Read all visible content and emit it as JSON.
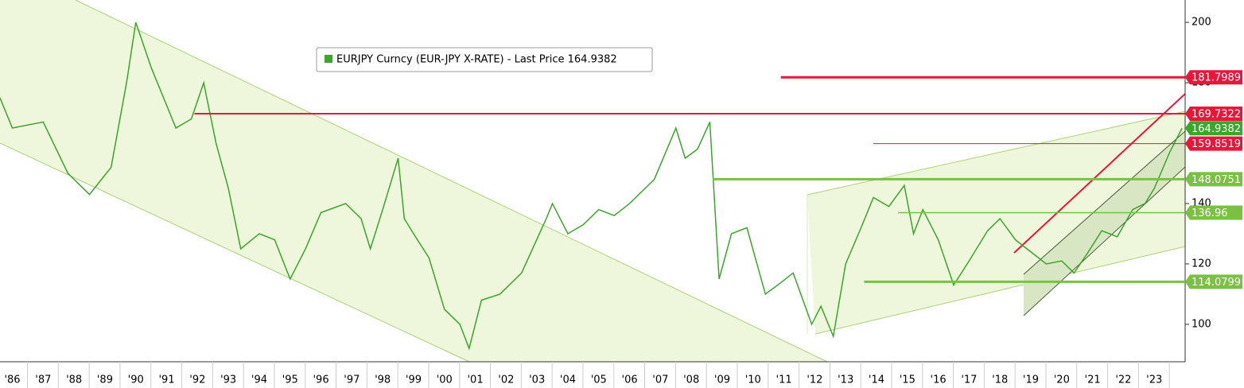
{
  "chart_data": {
    "type": "line",
    "series": [
      {
        "name": "EURJPY Curncy (EUR-JPY X-RATE) - Last Price 164.9382",
        "color": "#3aa62a",
        "values": [
          175,
          165,
          167,
          150,
          143,
          152,
          180,
          200,
          185,
          165,
          168,
          180,
          160,
          145,
          125,
          130,
          128,
          115,
          125,
          137,
          140,
          135,
          125,
          138,
          155,
          135,
          130,
          122,
          105,
          100,
          92,
          108,
          110,
          117,
          135,
          140,
          130,
          133,
          138,
          136,
          140,
          148,
          165,
          155,
          158,
          167,
          115,
          130,
          132,
          110,
          113,
          117,
          100,
          106,
          96,
          120,
          132,
          142,
          139,
          146,
          130,
          138,
          128,
          113,
          121,
          131,
          135,
          128,
          124,
          120,
          121,
          117,
          123,
          131,
          129,
          138,
          140,
          145,
          157,
          164.9382
        ]
      }
    ],
    "x": [
      1985.6,
      1986,
      1987,
      1987.8,
      1988.5,
      1989.2,
      1989.7,
      1990.0,
      1990.5,
      1991.3,
      1991.8,
      1992.2,
      1992.6,
      1993.0,
      1993.4,
      1994.0,
      1994.5,
      1995.0,
      1995.5,
      1996.0,
      1996.8,
      1997.3,
      1997.6,
      1998.0,
      1998.5,
      1998.7,
      1999.0,
      1999.5,
      2000.0,
      2000.5,
      2000.8,
      2001.2,
      2001.8,
      2002.5,
      2003.3,
      2003.5,
      2004.0,
      2004.5,
      2005.0,
      2005.5,
      2006.0,
      2006.8,
      2007.5,
      2007.8,
      2008.2,
      2008.6,
      2008.9,
      2009.3,
      2009.8,
      2010.4,
      2010.8,
      2011.3,
      2011.9,
      2012.2,
      2012.6,
      2013.0,
      2013.5,
      2013.9,
      2014.4,
      2014.9,
      2015.2,
      2015.5,
      2016.0,
      2016.5,
      2017.0,
      2017.6,
      2018.0,
      2018.5,
      2019.0,
      2019.5,
      2020.0,
      2020.4,
      2020.8,
      2021.3,
      2021.8,
      2022.3,
      2022.7,
      2023.0,
      2023.5,
      2023.9
    ],
    "xlim": [
      1985.6,
      2024.0
    ],
    "xticks": [
      {
        "value": 1986,
        "label": "'86"
      },
      {
        "value": 1987,
        "label": "'87"
      },
      {
        "value": 1988,
        "label": "'88"
      },
      {
        "value": 1989,
        "label": "'89"
      },
      {
        "value": 1990,
        "label": "'90"
      },
      {
        "value": 1991,
        "label": "'91"
      },
      {
        "value": 1992,
        "label": "'92"
      },
      {
        "value": 1993,
        "label": "'93"
      },
      {
        "value": 1994,
        "label": "'94"
      },
      {
        "value": 1995,
        "label": "'95"
      },
      {
        "value": 1996,
        "label": "'96"
      },
      {
        "value": 1997,
        "label": "'97"
      },
      {
        "value": 1998,
        "label": "'98"
      },
      {
        "value": 1999,
        "label": "'99"
      },
      {
        "value": 2000,
        "label": "'00"
      },
      {
        "value": 2001,
        "label": "'01"
      },
      {
        "value": 2002,
        "label": "'02"
      },
      {
        "value": 2003,
        "label": "'03"
      },
      {
        "value": 2004,
        "label": "'04"
      },
      {
        "value": 2005,
        "label": "'05"
      },
      {
        "value": 2006,
        "label": "'06"
      },
      {
        "value": 2007,
        "label": "'07"
      },
      {
        "value": 2008,
        "label": "'08"
      },
      {
        "value": 2009,
        "label": "'09"
      },
      {
        "value": 2010,
        "label": "'10"
      },
      {
        "value": 2011,
        "label": "'11"
      },
      {
        "value": 2012,
        "label": "'12"
      },
      {
        "value": 2013,
        "label": "'13"
      },
      {
        "value": 2014,
        "label": "'14"
      },
      {
        "value": 2015,
        "label": "'15"
      },
      {
        "value": 2016,
        "label": "'16"
      },
      {
        "value": 2017,
        "label": "'17"
      },
      {
        "value": 2018,
        "label": "'18"
      },
      {
        "value": 2019,
        "label": "'19"
      },
      {
        "value": 2020,
        "label": "'20"
      },
      {
        "value": 2021,
        "label": "'21"
      },
      {
        "value": 2022,
        "label": "'22"
      },
      {
        "value": 2023,
        "label": "'23"
      }
    ],
    "ylim": [
      87.6,
      207.4
    ],
    "yticks": [
      100,
      120,
      140,
      180,
      200
    ],
    "levels": [
      {
        "value": 181.7989,
        "label": "181.7989",
        "color": "#e8173a",
        "start": 2010.9,
        "width": 3
      },
      {
        "value": 169.7322,
        "label": "169.7322",
        "color": "#e8173a",
        "start": 1991.9,
        "width": 2
      },
      {
        "value": 164.9382,
        "label": "164.9382",
        "color": "#3aa62a",
        "start": 2024.0,
        "width": 0
      },
      {
        "value": 159.8519,
        "label": "159.8519",
        "color": "#e8173a",
        "start": 2013.9,
        "width": 1
      },
      {
        "value": 148.0751,
        "label": "148.0751",
        "color": "#7ac143",
        "start": 2008.7,
        "width": 3
      },
      {
        "value": 136.96,
        "label": "136.96",
        "color": "#7ac143",
        "start": 2014.7,
        "width": 1.5
      },
      {
        "value": 114.0799,
        "label": "114.0799",
        "color": "#7ac143",
        "start": 2013.6,
        "width": 3
      }
    ]
  }
}
